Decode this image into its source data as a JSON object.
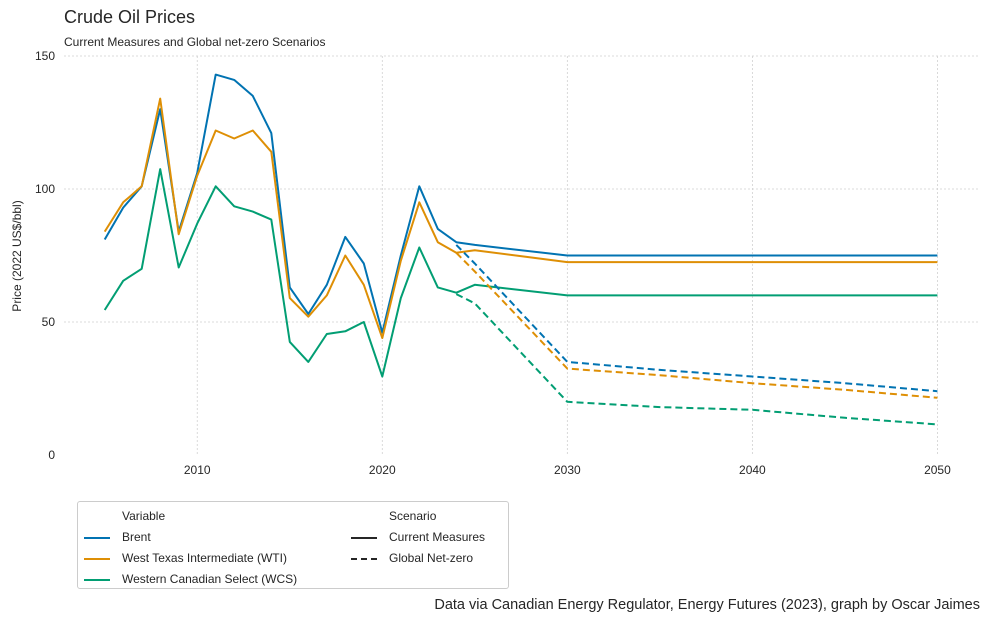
{
  "title": "Crude Oil Prices",
  "subtitle": "Current Measures and Global net-zero Scenarios",
  "caption": "Data via Canadian Energy Regulator, Energy Futures (2023), graph by Oscar Jaimes",
  "legend": {
    "variable_title": "Variable",
    "scenario_title": "Scenario",
    "variables": [
      {
        "label": "Brent",
        "color": "#0173b2"
      },
      {
        "label": "West Texas Intermediate (WTI)",
        "color": "#de8f05"
      },
      {
        "label": "Western Canadian Select (WCS)",
        "color": "#029e73"
      }
    ],
    "scenarios": [
      {
        "label": "Current Measures",
        "dash": "solid"
      },
      {
        "label": "Global Net-zero",
        "dash": "dashed"
      }
    ]
  },
  "chart_data": {
    "type": "line",
    "ylabel": "Price (2022 US$/bbl)",
    "xlabel": "",
    "xlim": [
      2002.8,
      2052.3
    ],
    "ylim": [
      0,
      150
    ],
    "xticks": [
      2010,
      2020,
      2030,
      2040,
      2050
    ],
    "yticks": [
      0,
      50,
      100,
      150
    ],
    "grid": true,
    "legend_position": "bottom-left",
    "series": [
      {
        "variable": "Brent",
        "scenario": "Current Measures",
        "color": "#0173b2",
        "dash": "solid",
        "x": [
          2005,
          2006,
          2007,
          2008,
          2009,
          2010,
          2011,
          2012,
          2013,
          2014,
          2015,
          2016,
          2017,
          2018,
          2019,
          2020,
          2021,
          2022,
          2023,
          2024,
          2025,
          2030,
          2035,
          2040,
          2045,
          2050
        ],
        "y": [
          81,
          93,
          101,
          130,
          84,
          106,
          143,
          141,
          135,
          121,
          63,
          53,
          64,
          82,
          72,
          46,
          75,
          101,
          85,
          80,
          79,
          75,
          75,
          75,
          75,
          75
        ]
      },
      {
        "variable": "West Texas Intermediate (WTI)",
        "scenario": "Current Measures",
        "color": "#de8f05",
        "dash": "solid",
        "x": [
          2005,
          2006,
          2007,
          2008,
          2009,
          2010,
          2011,
          2012,
          2013,
          2014,
          2015,
          2016,
          2017,
          2018,
          2019,
          2020,
          2021,
          2022,
          2023,
          2024,
          2025,
          2030,
          2035,
          2040,
          2045,
          2050
        ],
        "y": [
          84,
          95,
          101,
          134,
          83,
          105,
          122,
          119,
          122,
          114,
          59,
          52,
          60,
          75,
          64,
          44,
          73,
          95,
          80,
          76,
          77,
          72.5,
          72.5,
          72.5,
          72.5,
          72.5
        ]
      },
      {
        "variable": "Western Canadian Select (WCS)",
        "scenario": "Current Measures",
        "color": "#029e73",
        "dash": "solid",
        "x": [
          2005,
          2006,
          2007,
          2008,
          2009,
          2010,
          2011,
          2012,
          2013,
          2014,
          2015,
          2016,
          2017,
          2018,
          2019,
          2020,
          2021,
          2022,
          2023,
          2024,
          2025,
          2030,
          2035,
          2040,
          2045,
          2050
        ],
        "y": [
          54.5,
          65.5,
          70,
          107.5,
          70.5,
          87,
          101,
          93.5,
          91.5,
          88.5,
          42.5,
          35,
          45.5,
          46.5,
          50,
          29.5,
          59,
          78,
          63,
          61,
          64,
          60,
          60,
          60,
          60,
          60
        ]
      },
      {
        "variable": "Brent",
        "scenario": "Global Net-zero",
        "color": "#0173b2",
        "dash": "dashed",
        "x": [
          2024,
          2025,
          2030,
          2035,
          2040,
          2045,
          2050
        ],
        "y": [
          79,
          72,
          35,
          32,
          29.5,
          27,
          24
        ]
      },
      {
        "variable": "West Texas Intermediate (WTI)",
        "scenario": "Global Net-zero",
        "color": "#de8f05",
        "dash": "dashed",
        "x": [
          2024,
          2025,
          2030,
          2035,
          2040,
          2045,
          2050
        ],
        "y": [
          76,
          69,
          32.5,
          30,
          27,
          24.5,
          21.5
        ]
      },
      {
        "variable": "Western Canadian Select (WCS)",
        "scenario": "Global Net-zero",
        "color": "#029e73",
        "dash": "dashed",
        "x": [
          2024,
          2025,
          2030,
          2035,
          2040,
          2045,
          2050
        ],
        "y": [
          60.5,
          57,
          20,
          18,
          17,
          14,
          11.5
        ]
      }
    ]
  }
}
